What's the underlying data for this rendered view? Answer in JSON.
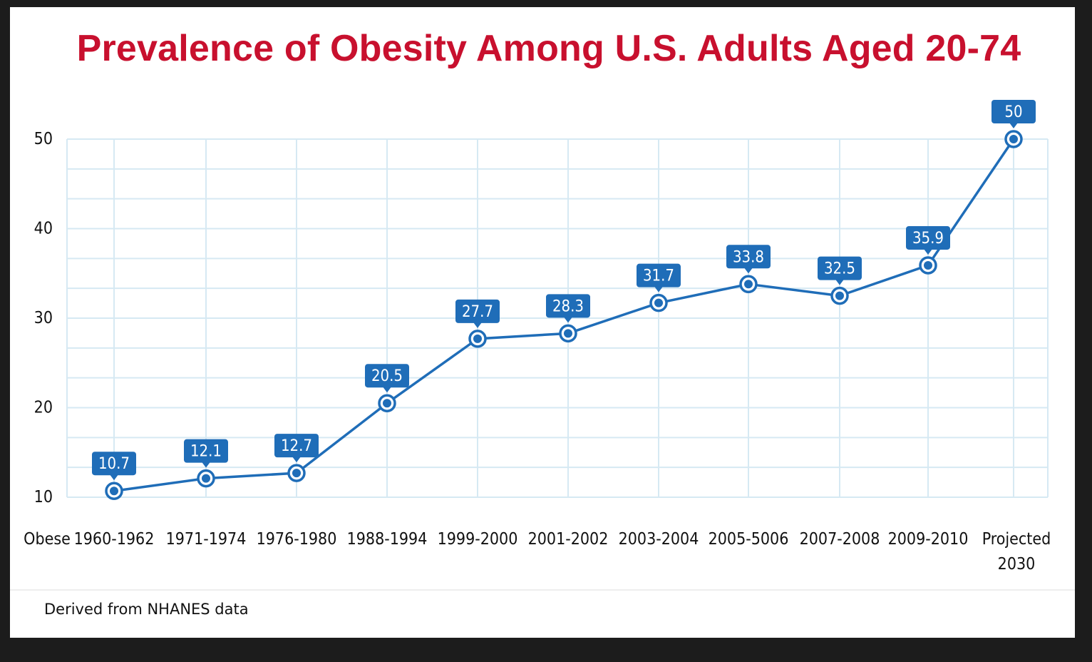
{
  "chart_data": {
    "type": "line",
    "title": "Prevalence of Obesity Among U.S. Adults Aged 20-74",
    "xlabel": "Obese",
    "ylabel": "",
    "categories": [
      "1960-1962",
      "1971-1974",
      "1976-1980",
      "1988-1994",
      "1999-2000",
      "2001-2002",
      "2003-2004",
      "2005-5006",
      "2007-2008",
      "2009-2010",
      "Projected 2030"
    ],
    "category_lines": [
      [
        "1960-1962"
      ],
      [
        "1971-1974"
      ],
      [
        "1976-1980"
      ],
      [
        "1988-1994"
      ],
      [
        "1999-2000"
      ],
      [
        "2001-2002"
      ],
      [
        "2003-2004"
      ],
      [
        "2005-5006"
      ],
      [
        "2007-2008"
      ],
      [
        "2009-2010"
      ],
      [
        "Projected",
        "2030"
      ]
    ],
    "series": [
      {
        "name": "Obese",
        "values": [
          10.7,
          12.1,
          12.7,
          20.5,
          27.7,
          28.3,
          31.7,
          33.8,
          32.5,
          35.9,
          50
        ],
        "data_labels": [
          "10.7",
          "12.1",
          "12.7",
          "20.5",
          "27.7",
          "28.3",
          "31.7",
          "33.8",
          "32.5",
          "35.9",
          "50"
        ]
      }
    ],
    "ylim": [
      10,
      50
    ],
    "yticks": [
      10,
      20,
      30,
      40,
      50
    ],
    "ytick_labels": [
      "10",
      "20",
      "30",
      "40",
      "50"
    ],
    "grid": true,
    "legend": "none",
    "colors": {
      "line": "#1f6db8",
      "label_box": "#1f6db8",
      "grid": "#d6e9f3",
      "title": "#c8102e"
    }
  },
  "footer": {
    "source": "Derived from NHANES data"
  }
}
